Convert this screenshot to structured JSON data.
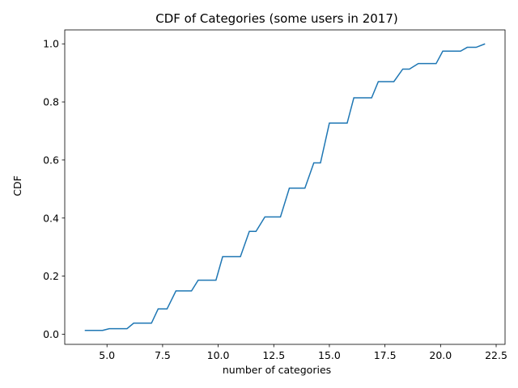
{
  "chart_data": {
    "type": "line",
    "title": "CDF of Categories (some users in 2017)",
    "xlabel": "number of categories",
    "ylabel": "CDF",
    "xlim": [
      3.1,
      22.9
    ],
    "ylim": [
      -0.035,
      1.048
    ],
    "xticks": [
      5.0,
      7.5,
      10.0,
      12.5,
      15.0,
      17.5,
      20.0,
      22.5
    ],
    "xtick_labels": [
      "5.0",
      "7.5",
      "10.0",
      "12.5",
      "15.0",
      "17.5",
      "20.0",
      "22.5"
    ],
    "yticks": [
      0.0,
      0.2,
      0.4,
      0.6,
      0.8,
      1.0
    ],
    "ytick_labels": [
      "0.0",
      "0.2",
      "0.4",
      "0.6",
      "0.8",
      "1.0"
    ],
    "grid": false,
    "series": [
      {
        "name": "CDF",
        "color": "#1f77b4",
        "x": [
          4.0,
          4.8,
          5.1,
          5.9,
          6.2,
          7.0,
          7.3,
          7.7,
          8.1,
          8.8,
          9.1,
          9.9,
          10.2,
          11.0,
          11.4,
          11.7,
          12.1,
          12.8,
          13.2,
          13.9,
          14.3,
          14.6,
          15.0,
          15.8,
          16.1,
          16.9,
          17.2,
          17.9,
          18.3,
          18.6,
          19.0,
          19.8,
          20.1,
          20.9,
          21.2,
          21.6,
          22.0
        ],
        "y": [
          0.013,
          0.013,
          0.019,
          0.019,
          0.038,
          0.038,
          0.087,
          0.087,
          0.149,
          0.149,
          0.186,
          0.186,
          0.267,
          0.267,
          0.354,
          0.354,
          0.404,
          0.404,
          0.503,
          0.503,
          0.59,
          0.59,
          0.727,
          0.727,
          0.814,
          0.814,
          0.87,
          0.87,
          0.913,
          0.913,
          0.932,
          0.932,
          0.975,
          0.975,
          0.988,
          0.988,
          1.0
        ]
      }
    ]
  }
}
